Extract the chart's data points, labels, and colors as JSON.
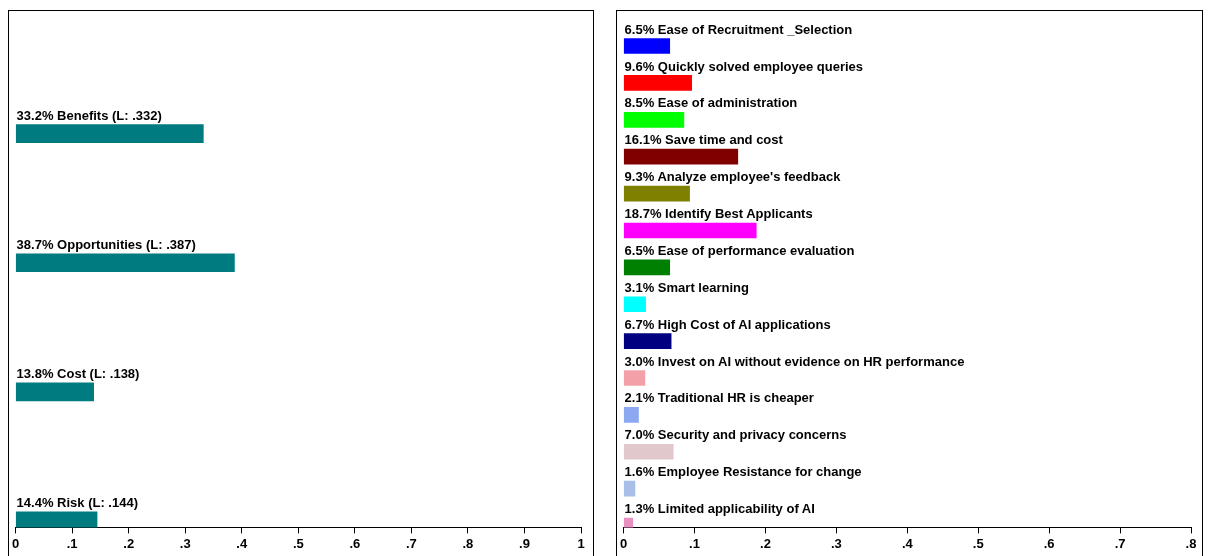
{
  "chart_data": [
    {
      "type": "bar",
      "orientation": "horizontal",
      "categories": [
        "33.2% Benefits (L: .332)",
        "38.7% Opportunities (L: .387)",
        "13.8% Cost (L: .138)",
        "14.4% Risk (L: .144)"
      ],
      "values": [
        0.332,
        0.387,
        0.138,
        0.144
      ],
      "color": "#007b80",
      "xlim": [
        0,
        1
      ],
      "xticks": [
        {
          "value": 0,
          "label": "0"
        },
        {
          "value": 0.1,
          "label": ".1"
        },
        {
          "value": 0.2,
          "label": ".2"
        },
        {
          "value": 0.3,
          "label": ".3"
        },
        {
          "value": 0.4,
          "label": ".4"
        },
        {
          "value": 0.5,
          "label": ".5"
        },
        {
          "value": 0.6,
          "label": ".6"
        },
        {
          "value": 0.7,
          "label": ".7"
        },
        {
          "value": 0.8,
          "label": ".8"
        },
        {
          "value": 0.9,
          "label": ".9"
        },
        {
          "value": 1,
          "label": "1"
        }
      ],
      "grid": false,
      "legend": false
    },
    {
      "type": "bar",
      "orientation": "horizontal",
      "categories": [
        "6.5% Ease of Recruitment _Selection",
        "9.6% Quickly solved employee queries",
        "8.5% Ease of administration",
        "16.1% Save time and cost",
        "9.3% Analyze employee's feedback",
        "18.7% Identify Best Applicants",
        "6.5% Ease of performance evaluation",
        "3.1% Smart learning",
        "6.7% High Cost of AI applications",
        "3.0% Invest on AI without evidence on HR performance",
        "2.1% Traditional HR is cheaper",
        "7.0% Security and privacy concerns",
        "1.6% Employee Resistance for change",
        "1.3% Limited applicability of AI"
      ],
      "values": [
        0.065,
        0.096,
        0.085,
        0.161,
        0.093,
        0.187,
        0.065,
        0.031,
        0.067,
        0.03,
        0.021,
        0.07,
        0.016,
        0.013
      ],
      "colors": [
        "#0000ff",
        "#ff0000",
        "#00ff00",
        "#800000",
        "#808000",
        "#ff00ff",
        "#008000",
        "#00ffff",
        "#000080",
        "#f4a0a8",
        "#8ca8f0",
        "#e0c8cc",
        "#a8c0e8",
        "#e890c0"
      ],
      "xlim": [
        0,
        0.8
      ],
      "xticks": [
        {
          "value": 0,
          "label": "0"
        },
        {
          "value": 0.1,
          "label": ".1"
        },
        {
          "value": 0.2,
          "label": ".2"
        },
        {
          "value": 0.3,
          "label": ".3"
        },
        {
          "value": 0.4,
          "label": ".4"
        },
        {
          "value": 0.5,
          "label": ".5"
        },
        {
          "value": 0.6,
          "label": ".6"
        },
        {
          "value": 0.7,
          "label": ".7"
        },
        {
          "value": 0.8,
          "label": ".8"
        }
      ],
      "grid": false,
      "legend": false
    }
  ]
}
